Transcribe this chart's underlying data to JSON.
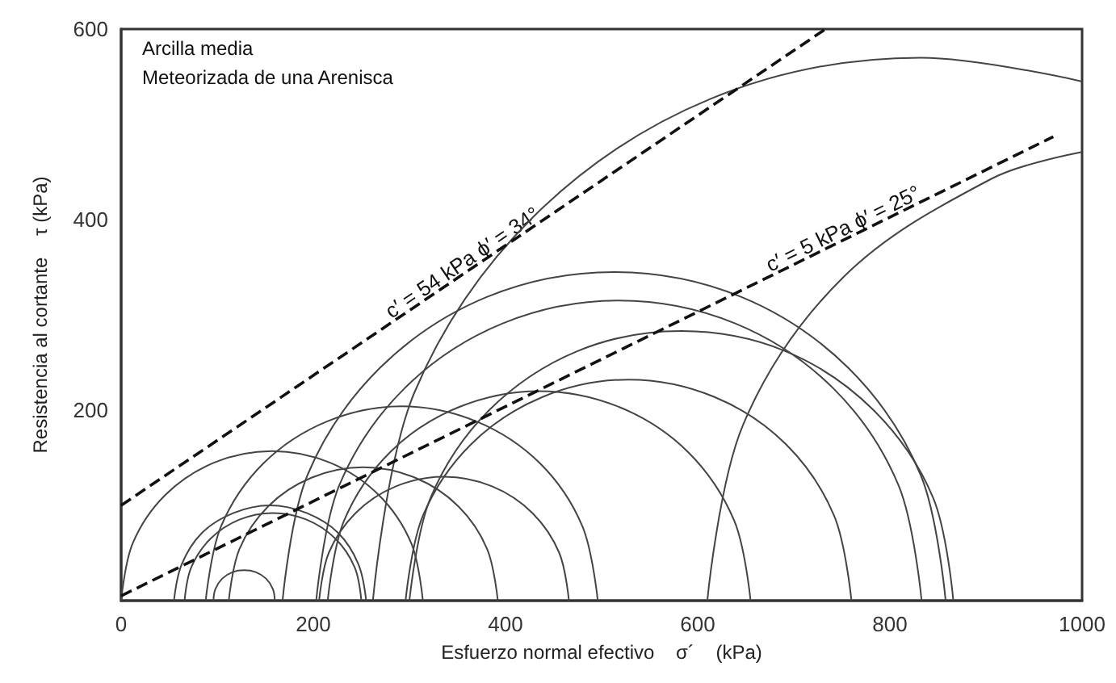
{
  "chart_data": {
    "type": "line",
    "xlabel": "Esfuerzo normal efectivo    σ´    (kPa)",
    "ylabel": "Resistencia al cortante    τ (kPa)",
    "xlim": [
      0,
      1000
    ],
    "ylim": [
      0,
      600
    ],
    "xticks": [
      0,
      200,
      400,
      600,
      800,
      1000
    ],
    "yticks": [
      200,
      400,
      600
    ],
    "grid": false,
    "marker": "none",
    "annotations": [
      "Arcilla media",
      "Meteorizada de una Arenisca",
      {
        "text": "c′ = 54 kPa ϕ′ = 34°",
        "x": 361,
        "y": 346
      },
      {
        "text": "c′ = 5 kPa ϕ′ = 25°",
        "x": 756,
        "y": 381
      }
    ],
    "series": [
      {
        "color": "#444444",
        "line_style": "solid",
        "x": [
          96,
          98,
          105,
          116,
          128,
          140,
          151,
          158,
          160
        ],
        "values": [
          0,
          12,
          23,
          30,
          32,
          30,
          23,
          12,
          0
        ]
      },
      {
        "color": "#444444",
        "line_style": "solid",
        "x": [
          55,
          63,
          84,
          117,
          155,
          193,
          226,
          247,
          255
        ],
        "values": [
          0,
          38,
          71,
          92,
          100,
          92,
          71,
          38,
          0
        ]
      },
      {
        "color": "#444444",
        "line_style": "solid",
        "x": [
          66,
          73,
          93,
          123,
          158,
          193,
          223,
          243,
          250
        ],
        "values": [
          0,
          35,
          65,
          85,
          92,
          85,
          65,
          35,
          0
        ]
      },
      {
        "color": "#444444",
        "line_style": "solid",
        "x": [
          0,
          12,
          46,
          97,
          157,
          217,
          268,
          302,
          314
        ],
        "values": [
          0,
          60,
          111,
          145,
          157,
          145,
          111,
          60,
          0
        ]
      },
      {
        "color": "#444444",
        "line_style": "solid",
        "x": [
          112,
          123,
          153,
          198,
          252,
          306,
          351,
          381,
          392
        ],
        "values": [
          0,
          54,
          99,
          129,
          140,
          129,
          99,
          54,
          0
        ]
      },
      {
        "color": "#444444",
        "line_style": "solid",
        "x": [
          206,
          216,
          244,
          286,
          336,
          386,
          428,
          456,
          466
        ],
        "values": [
          0,
          50,
          92,
          120,
          130,
          120,
          92,
          50,
          0
        ]
      },
      {
        "color": "#444444",
        "line_style": "solid",
        "x": [
          88,
          104,
          148,
          214,
          292,
          370,
          436,
          480,
          496
        ],
        "values": [
          0,
          78,
          144,
          188,
          204,
          188,
          144,
          78,
          0
        ]
      },
      {
        "color": "#444444",
        "line_style": "solid",
        "x": [
          215,
          232,
          280,
          351,
          435,
          519,
          590,
          638,
          655
        ],
        "values": [
          0,
          84,
          156,
          203,
          220,
          203,
          156,
          84,
          0
        ]
      },
      {
        "color": "#444444",
        "line_style": "solid",
        "x": [
          296,
          314,
          364,
          439,
          528,
          617,
          692,
          742,
          760
        ],
        "values": [
          0,
          89,
          164,
          214,
          232,
          214,
          164,
          89,
          0
        ]
      },
      {
        "color": "#444444",
        "line_style": "solid",
        "x": [
          203,
          227,
          295,
          397,
          518,
          639,
          741,
          809,
          833
        ],
        "values": [
          0,
          121,
          223,
          291,
          315,
          291,
          223,
          121,
          0
        ]
      },
      {
        "color": "#444444",
        "line_style": "solid",
        "x": [
          168,
          194,
          269,
          381,
          513,
          645,
          757,
          832,
          858
        ],
        "values": [
          0,
          132,
          244,
          319,
          345,
          319,
          244,
          132,
          0
        ]
      },
      {
        "color": "#444444",
        "line_style": "solid",
        "x": [
          300,
          322,
          383,
          475,
          583,
          691,
          783,
          845,
          866
        ],
        "values": [
          0,
          108,
          200,
          262,
          283,
          262,
          200,
          108,
          0
        ]
      },
      {
        "color": "#444444",
        "line_style": "solid",
        "x": [
          262,
          305,
          429,
          614,
          832,
          1000
        ],
        "values": [
          0,
          218,
          403,
          527,
          570,
          545
        ]
      },
      {
        "color": "#444444",
        "line_style": "solid",
        "x": [
          610,
          647,
          751,
          906,
          1000
        ],
        "values": [
          0,
          184,
          339,
          443,
          471
        ]
      },
      {
        "color": "#111111",
        "line_style": "dashed",
        "x": [
          0,
          733
        ],
        "values": [
          100,
          600
        ]
      },
      {
        "color": "#111111",
        "line_style": "dashed",
        "x": [
          0,
          970
        ],
        "values": [
          5,
          487
        ]
      }
    ]
  }
}
